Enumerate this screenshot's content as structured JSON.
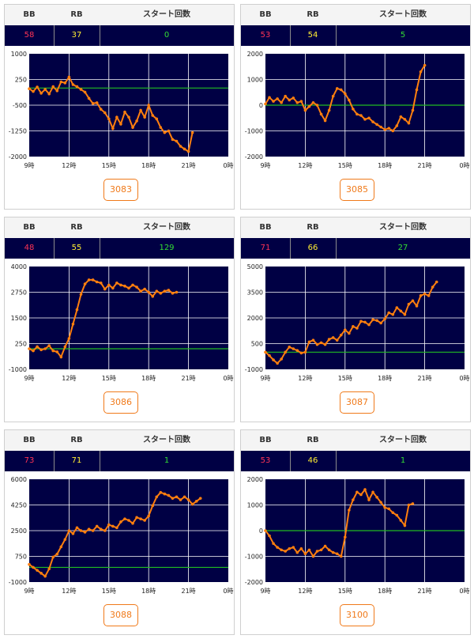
{
  "header": {
    "bb_label": "BB",
    "rb_label": "RB",
    "start_label": "スタート回数"
  },
  "colors": {
    "plot_bg": "#000044",
    "line": "#ff7f0e",
    "zero_line": "#22bb22",
    "grid": "#ffffff",
    "button": "#f07a1a"
  },
  "panels": [
    {
      "bb": "58",
      "rb": "37",
      "start": "0",
      "machine": "3083"
    },
    {
      "bb": "53",
      "rb": "54",
      "start": "5",
      "machine": "3085"
    },
    {
      "bb": "48",
      "rb": "55",
      "start": "129",
      "machine": "3086"
    },
    {
      "bb": "71",
      "rb": "66",
      "start": "27",
      "machine": "3087"
    },
    {
      "bb": "73",
      "rb": "71",
      "start": "1",
      "machine": "3088"
    },
    {
      "bb": "53",
      "rb": "46",
      "start": "1",
      "machine": "3100"
    }
  ],
  "chart_data": [
    {
      "type": "line",
      "xlabels": [
        "9時",
        "12時",
        "15時",
        "18時",
        "21時",
        "0時"
      ],
      "xlim": [
        9,
        24
      ],
      "ylim": [
        -2000,
        1000
      ],
      "yticks": [
        "1000",
        "250",
        "-500",
        "-1250",
        "-2000"
      ],
      "baseline": 0,
      "x": [
        9,
        9.3,
        9.6,
        9.9,
        10.2,
        10.5,
        10.8,
        11.1,
        11.4,
        11.7,
        12,
        12.3,
        12.6,
        12.9,
        13.2,
        13.5,
        13.8,
        14.1,
        14.4,
        14.7,
        15,
        15.3,
        15.6,
        15.9,
        16.2,
        16.5,
        16.8,
        17.1,
        17.4,
        17.7,
        18,
        18.3,
        18.6,
        18.9,
        19.2,
        19.5,
        19.8,
        20.1,
        20.4,
        20.7,
        21,
        21.3
      ],
      "y": [
        -20,
        -100,
        30,
        -150,
        -40,
        -170,
        40,
        -80,
        180,
        150,
        320,
        100,
        40,
        -40,
        -120,
        -300,
        -450,
        -430,
        -620,
        -720,
        -900,
        -1180,
        -850,
        -1050,
        -700,
        -850,
        -1150,
        -960,
        -650,
        -850,
        -500,
        -800,
        -900,
        -1150,
        -1300,
        -1250,
        -1500,
        -1550,
        -1700,
        -1780,
        -1850,
        -1300
      ]
    },
    {
      "type": "line",
      "xlabels": [
        "9時",
        "12時",
        "15時",
        "18時",
        "21時",
        "0時"
      ],
      "xlim": [
        9,
        24
      ],
      "ylim": [
        -2000,
        2000
      ],
      "yticks": [
        "2000",
        "1000",
        "0",
        "-1000",
        "-2000"
      ],
      "baseline": 0,
      "x": [
        9,
        9.3,
        9.6,
        9.9,
        10.2,
        10.5,
        10.8,
        11.1,
        11.4,
        11.7,
        12,
        12.3,
        12.6,
        12.9,
        13.2,
        13.5,
        13.8,
        14.1,
        14.4,
        14.7,
        15,
        15.3,
        15.6,
        15.9,
        16.2,
        16.5,
        16.8,
        17.1,
        17.4,
        17.7,
        18,
        18.3,
        18.6,
        18.9,
        19.2,
        19.5,
        19.8,
        20.1,
        20.4,
        20.7,
        21
      ],
      "y": [
        50,
        300,
        150,
        250,
        100,
        350,
        200,
        280,
        100,
        150,
        -200,
        -50,
        100,
        0,
        -350,
        -600,
        -200,
        350,
        650,
        600,
        450,
        200,
        -150,
        -350,
        -400,
        -550,
        -500,
        -650,
        -750,
        -850,
        -950,
        -900,
        -1000,
        -800,
        -450,
        -550,
        -700,
        -200,
        600,
        1300,
        1550
      ]
    },
    {
      "type": "line",
      "xlabels": [
        "9時",
        "12時",
        "15時",
        "18時",
        "21時",
        "0時"
      ],
      "xlim": [
        9,
        24
      ],
      "ylim": [
        -1000,
        4000
      ],
      "yticks": [
        "4000",
        "2750",
        "1500",
        "250",
        "-1000"
      ],
      "baseline": 0,
      "x": [
        9,
        9.3,
        9.6,
        9.9,
        10.2,
        10.5,
        10.8,
        11.1,
        11.4,
        11.7,
        12,
        12.3,
        12.6,
        12.9,
        13.2,
        13.5,
        13.8,
        14.1,
        14.4,
        14.7,
        15,
        15.3,
        15.6,
        15.9,
        16.2,
        16.5,
        16.8,
        17.1,
        17.4,
        17.7,
        18,
        18.3,
        18.6,
        18.9,
        19.2,
        19.5,
        19.8,
        20.1
      ],
      "y": [
        0,
        -100,
        100,
        -50,
        0,
        150,
        -100,
        -150,
        -400,
        100,
        500,
        1200,
        1900,
        2650,
        3150,
        3350,
        3350,
        3250,
        3200,
        2900,
        3100,
        2950,
        3200,
        3100,
        3050,
        2950,
        3100,
        3000,
        2800,
        2900,
        2750,
        2550,
        2800,
        2700,
        2800,
        2850,
        2700,
        2750
      ]
    },
    {
      "type": "line",
      "xlabels": [
        "9時",
        "12時",
        "15時",
        "18時",
        "21時",
        "0時"
      ],
      "xlim": [
        9,
        24
      ],
      "ylim": [
        -1000,
        5000
      ],
      "yticks": [
        "5000",
        "3500",
        "2000",
        "500",
        "-1000"
      ],
      "baseline": 0,
      "x": [
        9,
        9.3,
        9.6,
        9.9,
        10.2,
        10.5,
        10.8,
        11.1,
        11.4,
        11.7,
        12,
        12.3,
        12.6,
        12.9,
        13.2,
        13.5,
        13.8,
        14.1,
        14.4,
        14.7,
        15,
        15.3,
        15.6,
        15.9,
        16.2,
        16.5,
        16.8,
        17.1,
        17.4,
        17.7,
        18,
        18.3,
        18.6,
        18.9,
        19.2,
        19.5,
        19.8,
        20.1,
        20.4,
        20.7,
        21,
        21.3,
        21.6,
        21.9
      ],
      "y": [
        0,
        -200,
        -450,
        -650,
        -400,
        0,
        300,
        200,
        100,
        -50,
        0,
        600,
        700,
        450,
        550,
        450,
        750,
        850,
        700,
        1000,
        1300,
        1100,
        1500,
        1400,
        1800,
        1750,
        1600,
        1900,
        1850,
        1700,
        1950,
        2300,
        2200,
        2600,
        2400,
        2200,
        2800,
        3000,
        2700,
        3300,
        3400,
        3300,
        3800,
        4100
      ]
    },
    {
      "type": "line",
      "xlabels": [
        "9時",
        "12時",
        "15時",
        "18時",
        "21時",
        "0時"
      ],
      "xlim": [
        9,
        24
      ],
      "ylim": [
        -1000,
        6000
      ],
      "yticks": [
        "6000",
        "4250",
        "2500",
        "750",
        "-1000"
      ],
      "baseline": 0,
      "x": [
        9,
        9.3,
        9.6,
        9.9,
        10.2,
        10.5,
        10.8,
        11.1,
        11.4,
        11.7,
        12,
        12.3,
        12.6,
        12.9,
        13.2,
        13.5,
        13.8,
        14.1,
        14.4,
        14.7,
        15,
        15.3,
        15.6,
        15.9,
        16.2,
        16.5,
        16.8,
        17.1,
        17.4,
        17.7,
        18,
        18.3,
        18.6,
        18.9,
        19.2,
        19.5,
        19.8,
        20.1,
        20.4,
        20.7,
        21,
        21.3,
        21.6,
        21.9
      ],
      "y": [
        200,
        0,
        -200,
        -400,
        -600,
        -100,
        700,
        900,
        1400,
        1900,
        2500,
        2300,
        2700,
        2500,
        2400,
        2600,
        2500,
        2800,
        2600,
        2500,
        2900,
        2800,
        2700,
        3100,
        3300,
        3200,
        3000,
        3400,
        3300,
        3200,
        3500,
        4200,
        4800,
        5100,
        5000,
        4900,
        4700,
        4800,
        4600,
        4800,
        4600,
        4300,
        4500,
        4700
      ]
    },
    {
      "type": "line",
      "xlabels": [
        "9時",
        "12時",
        "15時",
        "18時",
        "21時",
        "0時"
      ],
      "xlim": [
        9,
        24
      ],
      "ylim": [
        -2000,
        2000
      ],
      "yticks": [
        "2000",
        "1000",
        "0",
        "-1000",
        "-2000"
      ],
      "baseline": 0,
      "x": [
        9,
        9.3,
        9.6,
        9.9,
        10.2,
        10.5,
        10.8,
        11.1,
        11.4,
        11.7,
        12,
        12.3,
        12.6,
        12.9,
        13.2,
        13.5,
        13.8,
        14.1,
        14.4,
        14.7,
        15,
        15.3,
        15.6,
        15.9,
        16.2,
        16.5,
        16.8,
        17.1,
        17.4,
        17.7,
        18,
        18.3,
        18.6,
        18.9,
        19.2,
        19.5,
        19.8,
        20.1
      ],
      "y": [
        0,
        -200,
        -500,
        -650,
        -750,
        -800,
        -700,
        -650,
        -850,
        -700,
        -900,
        -750,
        -1000,
        -800,
        -750,
        -600,
        -750,
        -850,
        -900,
        -1000,
        -250,
        800,
        1200,
        1500,
        1400,
        1600,
        1200,
        1500,
        1300,
        1100,
        900,
        850,
        700,
        600,
        400,
        200,
        1000,
        1050
      ]
    }
  ]
}
